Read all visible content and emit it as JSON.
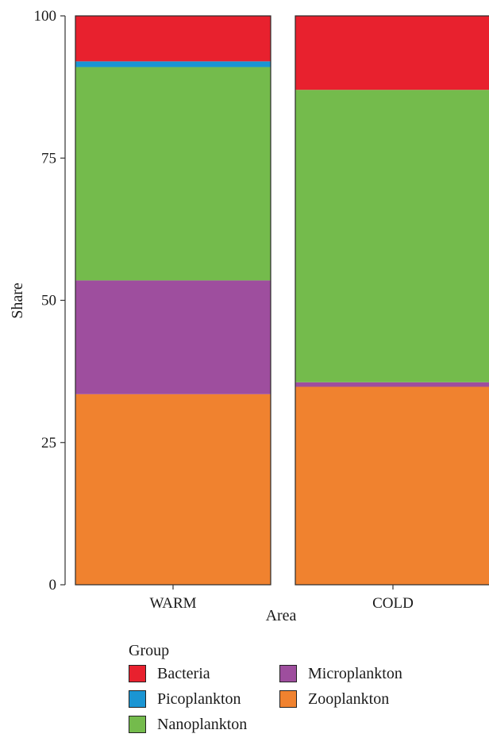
{
  "chart_data": {
    "type": "bar",
    "stacked": true,
    "percent": true,
    "categories": [
      "WARM",
      "COLD"
    ],
    "xlabel": "Area",
    "ylabel": "Share",
    "ylim": [
      0,
      100
    ],
    "yticks": [
      0,
      25,
      50,
      75,
      100
    ],
    "grid": false,
    "stack_order_bottom_to_top": [
      "Zooplankton",
      "Microplankton",
      "Nanoplankton",
      "Picoplankton",
      "Bacteria"
    ],
    "series": [
      {
        "name": "Bacteria",
        "color": "#e8212e",
        "values": [
          8.0,
          13.0
        ]
      },
      {
        "name": "Picoplankton",
        "color": "#1a95d3",
        "values": [
          1.0,
          0.0
        ]
      },
      {
        "name": "Nanoplankton",
        "color": "#74bb4c",
        "values": [
          37.5,
          51.4
        ]
      },
      {
        "name": "Microplankton",
        "color": "#9e4e9e",
        "values": [
          20.0,
          0.8
        ]
      },
      {
        "name": "Zooplankton",
        "color": "#f0822f",
        "values": [
          33.5,
          34.8
        ]
      }
    ]
  },
  "legend": {
    "title": "Group",
    "placement": "bottom",
    "items": [
      {
        "label": "Bacteria",
        "color": "#e8212e"
      },
      {
        "label": "Microplankton",
        "color": "#9e4e9e"
      },
      {
        "label": "Picoplankton",
        "color": "#1a95d3"
      },
      {
        "label": "Zooplankton",
        "color": "#f0822f"
      },
      {
        "label": "Nanoplankton",
        "color": "#74bb4c"
      }
    ]
  }
}
